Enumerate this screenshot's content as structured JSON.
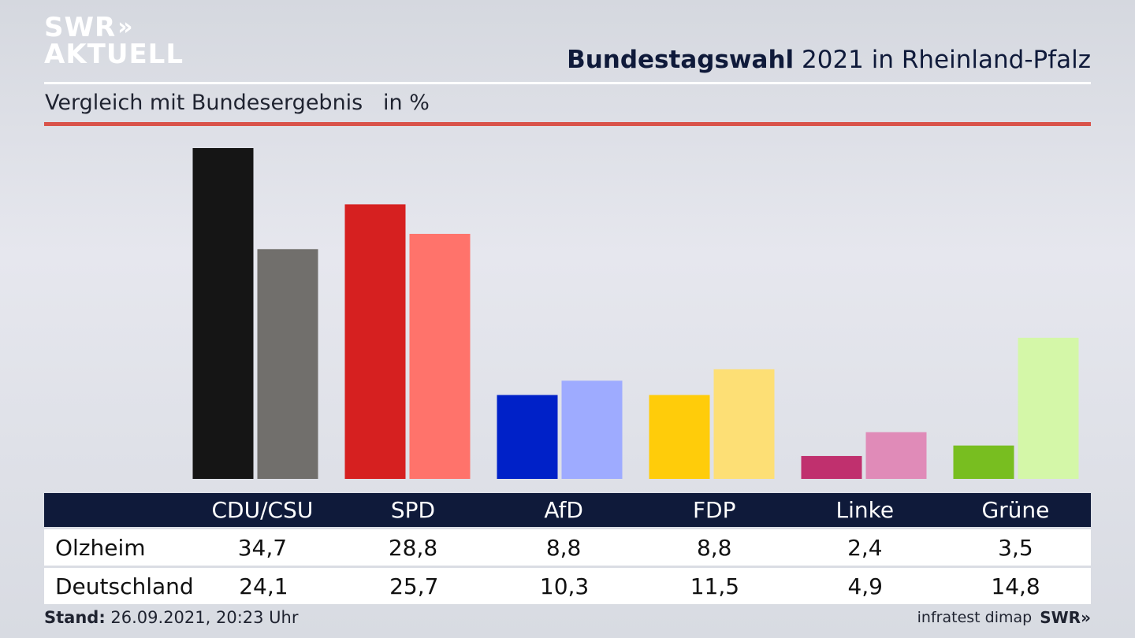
{
  "brand": {
    "line1": "SWR",
    "chevrons": "»",
    "line2": "AKTUELL"
  },
  "header": {
    "title_bold": "Bundestagswahl",
    "title_rest": " 2021 in Rheinland-Pfalz",
    "subtitle": "Vergleich mit Bundesergebnis   in %"
  },
  "chart_data": {
    "type": "bar",
    "title": "Bundestagswahl 2021 in Rheinland-Pfalz",
    "subtitle": "Vergleich mit Bundesergebnis in %",
    "categories": [
      "CDU/CSU",
      "SPD",
      "AfD",
      "FDP",
      "Linke",
      "Grüne"
    ],
    "series": [
      {
        "name": "Olzheim",
        "values": [
          34.7,
          28.8,
          8.8,
          8.8,
          2.4,
          3.5
        ],
        "colors": [
          "#151515",
          "#d62020",
          "#0021c8",
          "#ffcc0a",
          "#c0306e",
          "#78be20"
        ]
      },
      {
        "name": "Deutschland",
        "values": [
          24.1,
          25.7,
          10.3,
          11.5,
          4.9,
          14.8
        ],
        "colors": [
          "#716f6c",
          "#ff736b",
          "#9eabff",
          "#fddf75",
          "#e08bb8",
          "#d4f7a8"
        ]
      }
    ],
    "ylim": [
      0,
      35
    ]
  },
  "table": {
    "headers": [
      "CDU/CSU",
      "SPD",
      "AfD",
      "FDP",
      "Linke",
      "Grüne"
    ],
    "rows": [
      {
        "label": "Olzheim",
        "values": [
          "34,7",
          "28,8",
          "8,8",
          "8,8",
          "2,4",
          "3,5"
        ]
      },
      {
        "label": "Deutschland",
        "values": [
          "24,1",
          "25,7",
          "10,3",
          "11,5",
          "4,9",
          "14,8"
        ]
      }
    ]
  },
  "footer": {
    "stand_label": "Stand:",
    "stand_value": " 26.09.2021, 20:23 Uhr",
    "source": "infratest dimap",
    "brand": "SWR",
    "brand_chevrons": "»"
  }
}
